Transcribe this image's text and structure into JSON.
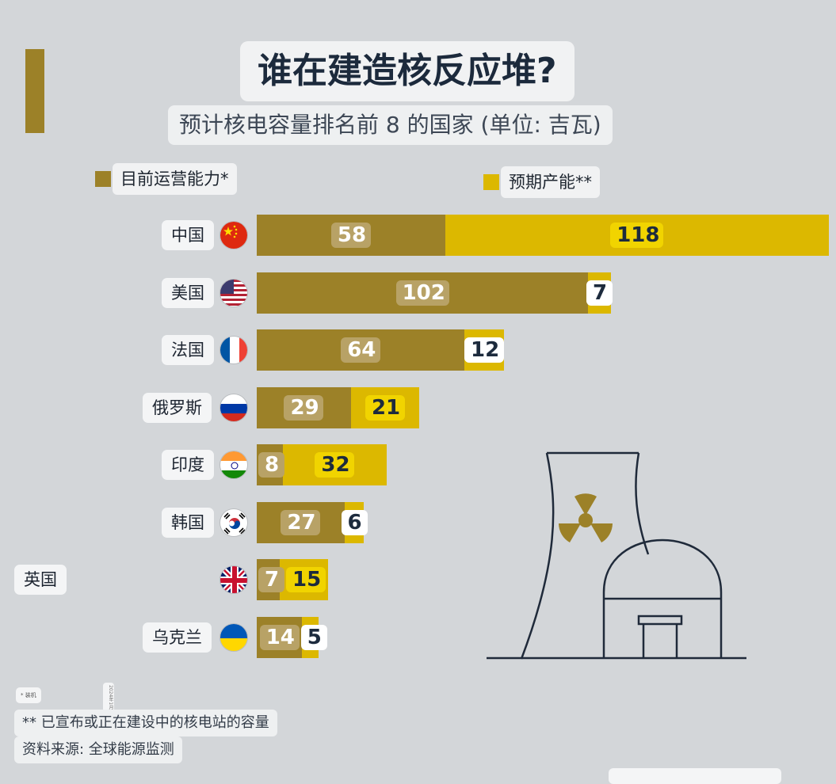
{
  "title": "谁在建造核反应堆?",
  "subtitle": "预计核电容量排名前 8 的国家 (单位: 吉瓦)",
  "legend": {
    "current": "目前运营能力*",
    "expected": "预期产能**"
  },
  "colors": {
    "current": "#9c8128",
    "expected": "#dcb800",
    "background": "#d3d6d9",
    "title_text": "#1c2a3c"
  },
  "chart_data": {
    "type": "bar",
    "orientation": "horizontal",
    "stacked": true,
    "title": "谁在建造核反应堆?",
    "subtitle": "预计核电容量排名前 8 的国家 (单位: 吉瓦)",
    "categories": [
      "中国",
      "美国",
      "法国",
      "俄罗斯",
      "印度",
      "韩国",
      "英国",
      "乌克兰"
    ],
    "series": [
      {
        "name": "目前运营能力*",
        "values": [
          58,
          102,
          64,
          29,
          8,
          27,
          7,
          14
        ]
      },
      {
        "name": "预期产能**",
        "values": [
          118,
          7,
          12,
          21,
          32,
          6,
          15,
          5
        ]
      }
    ],
    "flags": [
      "cn-flag-icon",
      "us-flag-icon",
      "fr-flag-icon",
      "ru-flag-icon",
      "in-flag-icon",
      "kr-flag-icon",
      "gb-flag-icon",
      "ua-flag-icon"
    ],
    "grid": false,
    "legend_position": "top"
  },
  "notes": {
    "tiny": "* 装机",
    "date": "2024年1月",
    "expected_note": "** 已宣布或正在建设中的核电站的容量",
    "source": "资料来源: 全球能源监测"
  }
}
